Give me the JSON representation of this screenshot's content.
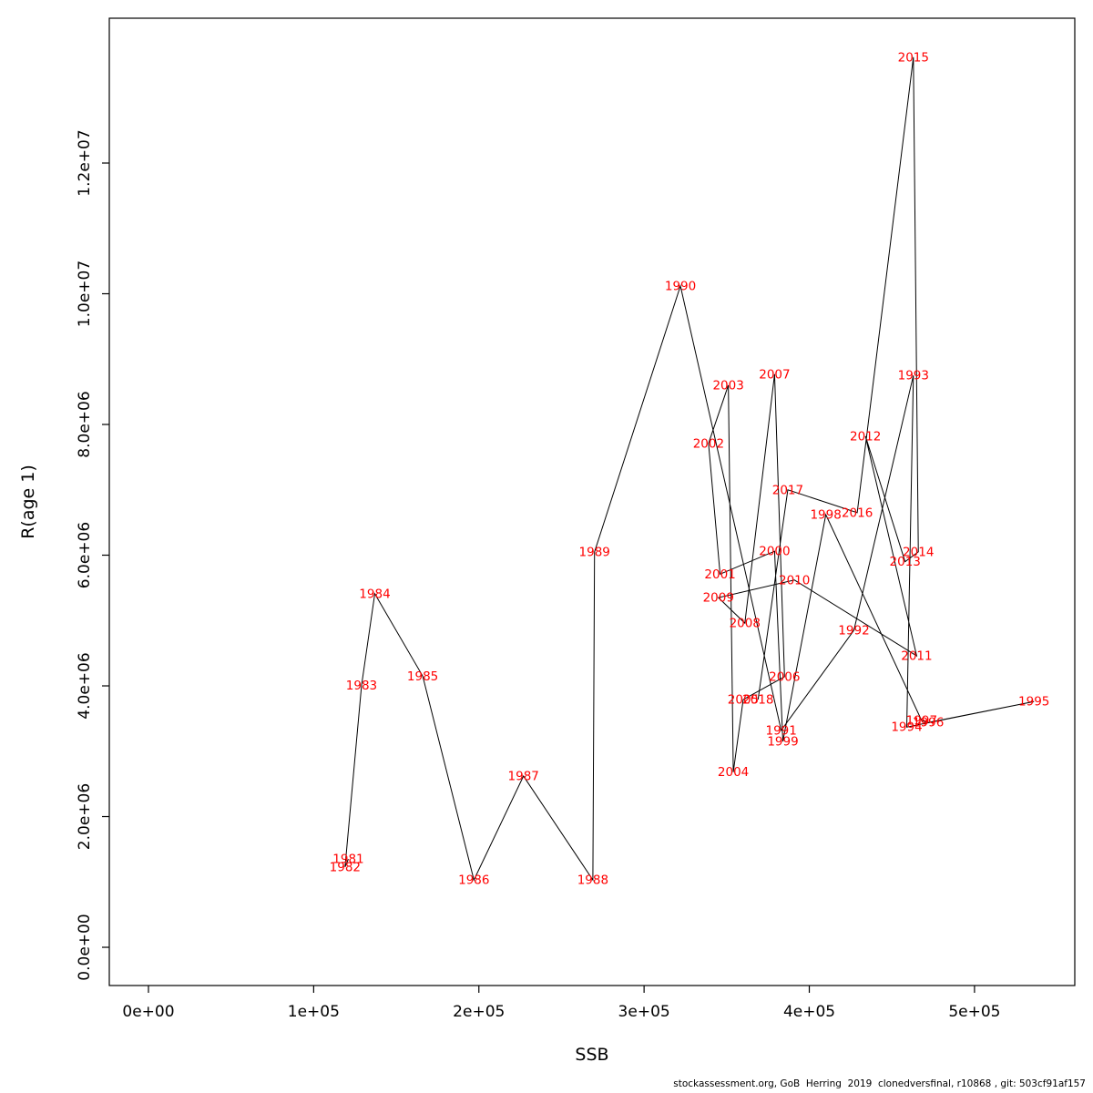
{
  "footer": {
    "text": "stockassessment.org, GoB  Herring  2019  clonedversfinal, r10868 , git: 503cf91af157"
  },
  "chart_data": {
    "type": "scatter",
    "subtype": "labeled-points-connected-by-year",
    "title": "",
    "xlabel": "SSB",
    "ylabel": "R(age 1)",
    "xlim": [
      -23700,
      560700
    ],
    "ylim": [
      -585000,
      14216000
    ],
    "grid": false,
    "legend": "none",
    "line_color": "#000000",
    "point_label_color": "#ff0000",
    "frame_color": "#000000",
    "x_ticks": {
      "values": [
        0,
        100000,
        200000,
        300000,
        400000,
        500000
      ],
      "labels": [
        "0e+00",
        "1e+05",
        "2e+05",
        "3e+05",
        "4e+05",
        "5e+05"
      ]
    },
    "y_ticks": {
      "values": [
        0,
        2000000,
        4000000,
        6000000,
        8000000,
        10000000,
        12000000
      ],
      "labels": [
        "0.0e+00",
        "2.0e+06",
        "4.0e+06",
        "6.0e+06",
        "8.0e+06",
        "1.0e+07",
        "1.2e+07"
      ]
    },
    "series": [
      {
        "name": "stock-recruitment-by-year",
        "labels": [
          "1981",
          "1982",
          "1983",
          "1984",
          "1985",
          "1986",
          "1987",
          "1988",
          "1989",
          "1990",
          "1991",
          "1992",
          "1993",
          "1994",
          "1995",
          "1996",
          "1997",
          "1998",
          "1999",
          "2000",
          "2001",
          "2002",
          "2003",
          "2004",
          "2005",
          "2006",
          "2007",
          "2008",
          "2009",
          "2010",
          "2011",
          "2012",
          "2013",
          "2014",
          "2015",
          "2016",
          "2017",
          "2018"
        ],
        "x": [
          121000,
          119000,
          129000,
          137000,
          166000,
          197000,
          227000,
          269000,
          270000,
          322000,
          383000,
          427000,
          463000,
          459000,
          536000,
          472000,
          468000,
          410000,
          384000,
          379000,
          346000,
          339000,
          351000,
          354000,
          360000,
          385000,
          379000,
          361000,
          345000,
          391000,
          465000,
          434000,
          458000,
          466000,
          463000,
          429000,
          387000,
          369000
        ],
        "y": [
          1350000,
          1230000,
          4010000,
          5410000,
          4150000,
          1030000,
          2620000,
          1030000,
          6050000,
          10120000,
          3320000,
          4850000,
          8750000,
          3370000,
          3760000,
          3440000,
          3470000,
          6620000,
          3150000,
          6060000,
          5710000,
          7710000,
          8600000,
          2680000,
          3790000,
          4140000,
          8770000,
          4960000,
          5350000,
          5620000,
          4460000,
          7820000,
          5900000,
          6050000,
          13620000,
          6650000,
          7000000,
          3790000
        ]
      }
    ]
  }
}
